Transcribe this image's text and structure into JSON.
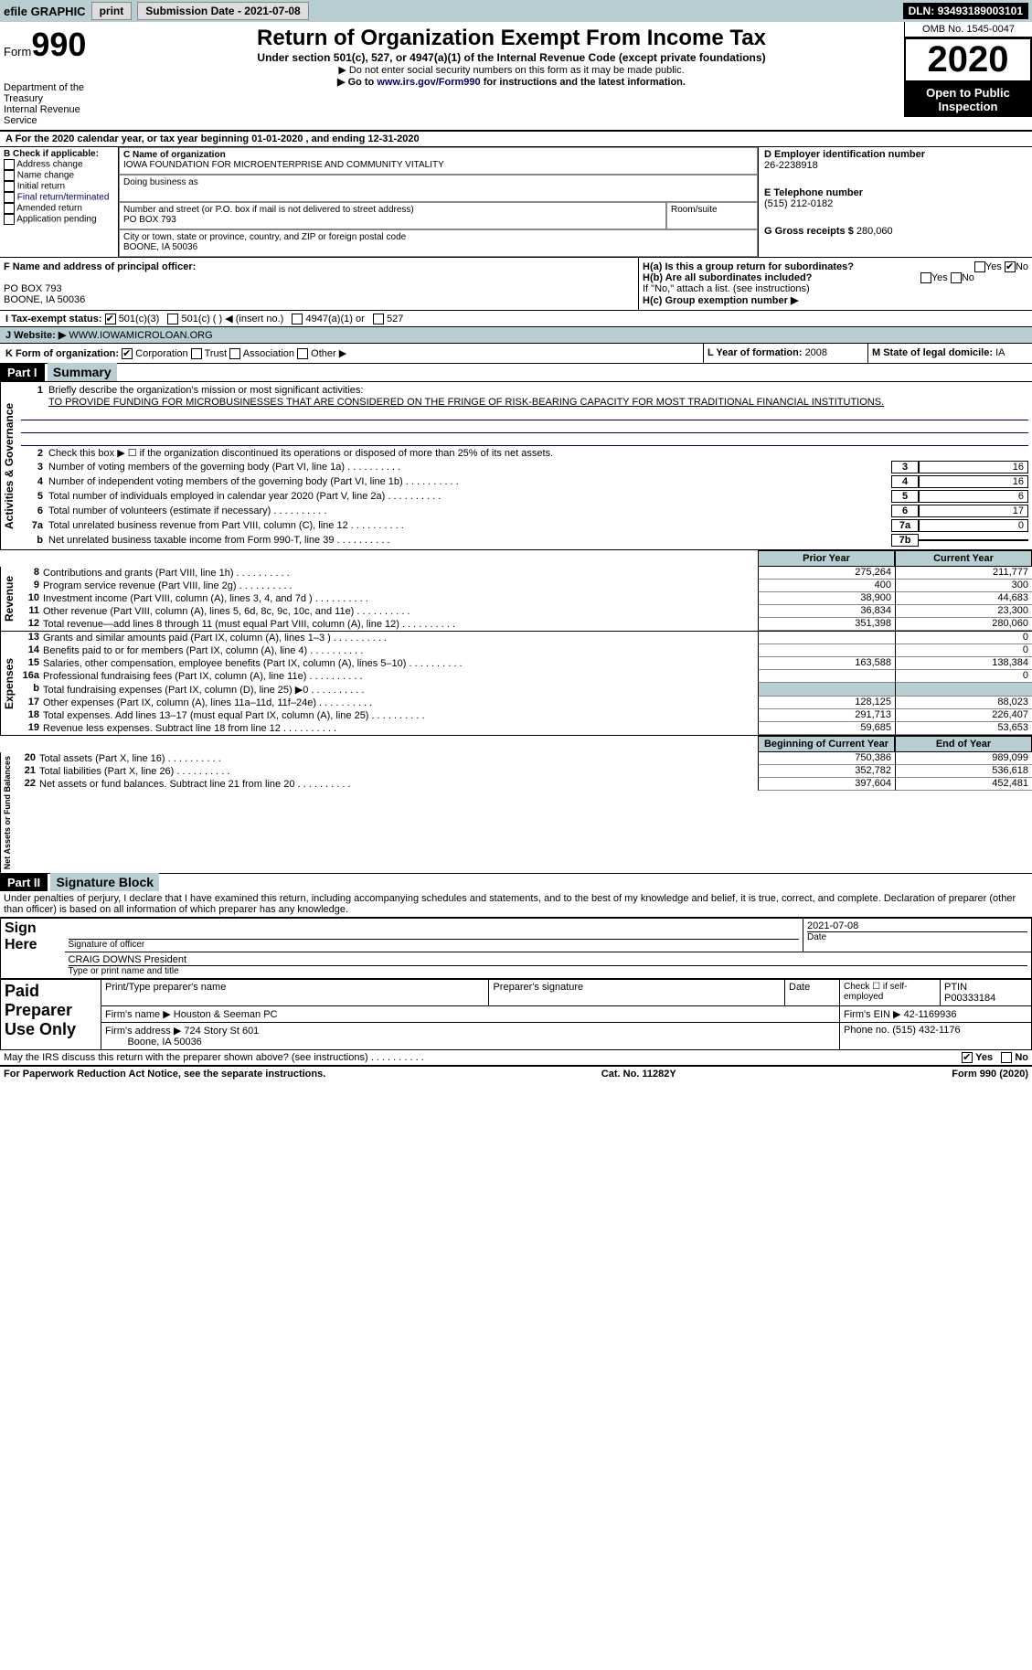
{
  "topbar": {
    "efile": "efile GRAPHIC",
    "print": "print",
    "submission_label": "Submission Date - ",
    "submission_date": "2021-07-08",
    "dln_label": "DLN: ",
    "dln": "93493189003101"
  },
  "header": {
    "form_word": "Form",
    "form_num": "990",
    "dept": "Department of the Treasury\nInternal Revenue Service",
    "title": "Return of Organization Exempt From Income Tax",
    "sub": "Under section 501(c), 527, or 4947(a)(1) of the Internal Revenue Code (except private foundations)",
    "note1": "▶ Do not enter social security numbers on this form as it may be made public.",
    "note2_pre": "▶ Go to ",
    "note2_link": "www.irs.gov/Form990",
    "note2_post": " for instructions and the latest information.",
    "omb": "OMB No. 1545-0047",
    "year": "2020",
    "inspect": "Open to Public Inspection"
  },
  "line_a": "A For the 2020 calendar year, or tax year beginning 01-01-2020   , and ending 12-31-2020",
  "box_b": {
    "label": "B Check if applicable:",
    "opts": [
      "Address change",
      "Name change",
      "Initial return",
      "Final return/terminated",
      "Amended return",
      "Application pending"
    ]
  },
  "box_c": {
    "label": "C Name of organization",
    "name": "IOWA FOUNDATION FOR MICROENTERPRISE AND COMMUNITY VITALITY",
    "dba_label": "Doing business as",
    "street_label": "Number and street (or P.O. box if mail is not delivered to street address)",
    "room_label": "Room/suite",
    "street": "PO BOX 793",
    "city_label": "City or town, state or province, country, and ZIP or foreign postal code",
    "city": "BOONE, IA  50036"
  },
  "box_d": {
    "label": "D Employer identification number",
    "val": "26-2238918"
  },
  "box_e": {
    "label": "E Telephone number",
    "val": "(515) 212-0182"
  },
  "box_g": {
    "label": "G Gross receipts $ ",
    "val": "280,060"
  },
  "box_f": {
    "label": "F  Name and address of principal officer:",
    "addr1": "PO BOX 793",
    "addr2": "BOONE, IA  50036"
  },
  "box_h": {
    "a": "H(a)  Is this a group return for subordinates?",
    "b": "H(b)  Are all subordinates included?",
    "note": "If \"No,\" attach a list. (see instructions)",
    "c": "H(c)  Group exemption number ▶"
  },
  "line_i": {
    "label": "I   Tax-exempt status:",
    "o1": "501(c)(3)",
    "o2": "501(c) (  ) ◀ (insert no.)",
    "o3": "4947(a)(1) or",
    "o4": "527"
  },
  "line_j": {
    "label": "J   Website: ▶ ",
    "val": "WWW.IOWAMICROLOAN.ORG"
  },
  "line_k": {
    "label": "K Form of organization:",
    "o1": "Corporation",
    "o2": "Trust",
    "o3": "Association",
    "o4": "Other ▶"
  },
  "line_l": {
    "label": "L Year of formation: ",
    "val": "2008"
  },
  "line_m": {
    "label": "M State of legal domicile: ",
    "val": "IA"
  },
  "part1": {
    "hdr": "Part I",
    "title": "Summary",
    "q1": "Briefly describe the organization's mission or most significant activities:",
    "q1a": "TO PROVIDE FUNDING FOR MICROBUSINESSES THAT ARE CONSIDERED ON THE FRINGE OF RISK-BEARING CAPACITY FOR MOST TRADITIONAL FINANCIAL INSTITUTIONS.",
    "q2": "Check this box ▶ ☐  if the organization discontinued its operations or disposed of more than 25% of its net assets.",
    "gov_label": "Activities & Governance",
    "rev_label": "Revenue",
    "exp_label": "Expenses",
    "net_label": "Net Assets or Fund Balances",
    "lines_gov": [
      {
        "n": "3",
        "d": "Number of voting members of the governing body (Part VI, line 1a)",
        "b": "3",
        "v": "16"
      },
      {
        "n": "4",
        "d": "Number of independent voting members of the governing body (Part VI, line 1b)",
        "b": "4",
        "v": "16"
      },
      {
        "n": "5",
        "d": "Total number of individuals employed in calendar year 2020 (Part V, line 2a)",
        "b": "5",
        "v": "6"
      },
      {
        "n": "6",
        "d": "Total number of volunteers (estimate if necessary)",
        "b": "6",
        "v": "17"
      },
      {
        "n": "7a",
        "d": "Total unrelated business revenue from Part VIII, column (C), line 12",
        "b": "7a",
        "v": "0"
      },
      {
        "n": "b",
        "d": "Net unrelated business taxable income from Form 990-T, line 39",
        "b": "7b",
        "v": ""
      }
    ],
    "col_prior": "Prior Year",
    "col_current": "Current Year",
    "lines_rev": [
      {
        "n": "8",
        "d": "Contributions and grants (Part VIII, line 1h)",
        "p": "275,264",
        "c": "211,777"
      },
      {
        "n": "9",
        "d": "Program service revenue (Part VIII, line 2g)",
        "p": "400",
        "c": "300"
      },
      {
        "n": "10",
        "d": "Investment income (Part VIII, column (A), lines 3, 4, and 7d )",
        "p": "38,900",
        "c": "44,683"
      },
      {
        "n": "11",
        "d": "Other revenue (Part VIII, column (A), lines 5, 6d, 8c, 9c, 10c, and 11e)",
        "p": "36,834",
        "c": "23,300"
      },
      {
        "n": "12",
        "d": "Total revenue—add lines 8 through 11 (must equal Part VIII, column (A), line 12)",
        "p": "351,398",
        "c": "280,060"
      }
    ],
    "lines_exp": [
      {
        "n": "13",
        "d": "Grants and similar amounts paid (Part IX, column (A), lines 1–3 )",
        "p": "",
        "c": "0"
      },
      {
        "n": "14",
        "d": "Benefits paid to or for members (Part IX, column (A), line 4)",
        "p": "",
        "c": "0"
      },
      {
        "n": "15",
        "d": "Salaries, other compensation, employee benefits (Part IX, column (A), lines 5–10)",
        "p": "163,588",
        "c": "138,384"
      },
      {
        "n": "16a",
        "d": "Professional fundraising fees (Part IX, column (A), line 11e)",
        "p": "",
        "c": "0"
      },
      {
        "n": "b",
        "d": "Total fundraising expenses (Part IX, column (D), line 25) ▶0",
        "p": "grey",
        "c": "grey"
      },
      {
        "n": "17",
        "d": "Other expenses (Part IX, column (A), lines 11a–11d, 11f–24e)",
        "p": "128,125",
        "c": "88,023"
      },
      {
        "n": "18",
        "d": "Total expenses. Add lines 13–17 (must equal Part IX, column (A), line 25)",
        "p": "291,713",
        "c": "226,407"
      },
      {
        "n": "19",
        "d": "Revenue less expenses. Subtract line 18 from line 12",
        "p": "59,685",
        "c": "53,653"
      }
    ],
    "col_begin": "Beginning of Current Year",
    "col_end": "End of Year",
    "lines_net": [
      {
        "n": "20",
        "d": "Total assets (Part X, line 16)",
        "p": "750,386",
        "c": "989,099"
      },
      {
        "n": "21",
        "d": "Total liabilities (Part X, line 26)",
        "p": "352,782",
        "c": "536,618"
      },
      {
        "n": "22",
        "d": "Net assets or fund balances. Subtract line 21 from line 20",
        "p": "397,604",
        "c": "452,481"
      }
    ]
  },
  "part2": {
    "hdr": "Part II",
    "title": "Signature Block",
    "decl": "Under penalties of perjury, I declare that I have examined this return, including accompanying schedules and statements, and to the best of my knowledge and belief, it is true, correct, and complete. Declaration of preparer (other than officer) is based on all information of which preparer has any knowledge."
  },
  "sign": {
    "label": "Sign Here",
    "sig_officer": "Signature of officer",
    "date": "Date",
    "date_val": "2021-07-08",
    "name": "CRAIG DOWNS  President",
    "type_name": "Type or print name and title"
  },
  "preparer": {
    "label": "Paid Preparer Use Only",
    "h1": "Print/Type preparer's name",
    "h2": "Preparer's signature",
    "h3": "Date",
    "h4_a": "Check ☐ if self-employed",
    "h4_b": "PTIN",
    "ptin": "P00333184",
    "firm_name_l": "Firm's name    ▶",
    "firm_name": "Houston & Seeman PC",
    "firm_ein_l": "Firm's EIN ▶",
    "firm_ein": "42-1169936",
    "firm_addr_l": "Firm's address ▶",
    "firm_addr": "724 Story St 601",
    "firm_city": "Boone, IA  50036",
    "phone_l": "Phone no. ",
    "phone": "(515) 432-1176"
  },
  "discuss": "May the IRS discuss this return with the preparer shown above? (see instructions)",
  "footer": {
    "l": "For Paperwork Reduction Act Notice, see the separate instructions.",
    "m": "Cat. No. 11282Y",
    "r": "Form 990 (2020)"
  }
}
